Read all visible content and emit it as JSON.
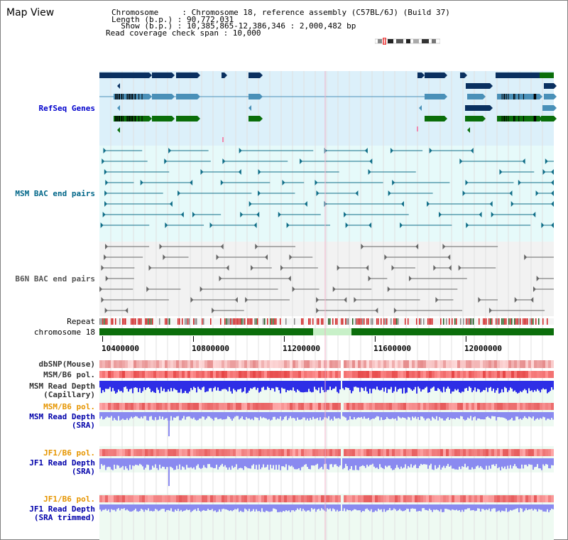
{
  "window": {
    "title": "Map View"
  },
  "header": {
    "lines": [
      "Chromosome     : Chromosome 18, reference assembly (C57BL/6J) (Build 37)",
      "Length (b.p.) : 90,772,031",
      "  Show (b.p.) : 10,385,865-12,386,346 : 2,000,482 bp",
      "Read coverage check span : 10,000"
    ]
  },
  "tracks": {
    "refseq": {
      "label": "RefSeq Genes",
      "color": "#0000cc"
    },
    "msm_bac": {
      "label": "MSM BAC end pairs",
      "color": "#006688"
    },
    "b6n_bac": {
      "label": "B6N BAC end pairs",
      "color": "#555555"
    },
    "repeat": {
      "label": "Repeat",
      "color": "#000000"
    },
    "chromosome": {
      "label": "chromosome 18",
      "color": "#000000"
    },
    "dbsnp": {
      "label": "dbSNP(Mouse)",
      "color": "#333333"
    },
    "msm_b6_pol_1": {
      "label": "MSM/B6 pol.",
      "color": "#333333"
    },
    "msm_depth_cap": {
      "label": "MSM Read Depth\n(Capillary)",
      "color": "#333333"
    },
    "msm_b6_pol_2": {
      "label": "MSM/B6 pol.",
      "color": "#e69500"
    },
    "msm_depth_sra": {
      "label": "MSM Read Depth\n(SRA)",
      "color": "#0000aa"
    },
    "jf1_b6_pol_1": {
      "label": "JF1/B6 pol.",
      "color": "#e69500"
    },
    "jf1_depth_sra": {
      "label": "JF1 Read Depth\n(SRA)",
      "color": "#0000aa"
    },
    "jf1_b6_pol_2": {
      "label": "JF1/B6 pol.",
      "color": "#e69500"
    },
    "jf1_depth_trim": {
      "label": "JF1 Read Depth\n(SRA trimmed)",
      "color": "#0000aa"
    }
  },
  "axis": {
    "ticks": [
      "10400000",
      "10800000",
      "11200000",
      "11600000",
      "12000000"
    ],
    "tick_values": [
      10400000,
      10800000,
      11200000,
      11600000,
      12000000
    ],
    "range": [
      10385865,
      12386346
    ]
  },
  "colors": {
    "refseq_bg": "#dcf0fa",
    "msm_bg": "#e6fafa",
    "b6n_bg": "#f0f0f0",
    "depth_bg": "#eefaf0",
    "gene_dark": "#0a3060",
    "gene_mid": "#4a90b8",
    "gene_green": "#0a6e0a",
    "bac_msm": "#106e88",
    "bac_b6n": "#666666",
    "chrom_green": "#0b6e0b",
    "depth_blue": "#2e2ee6",
    "depth_light": "#8a8af0"
  }
}
